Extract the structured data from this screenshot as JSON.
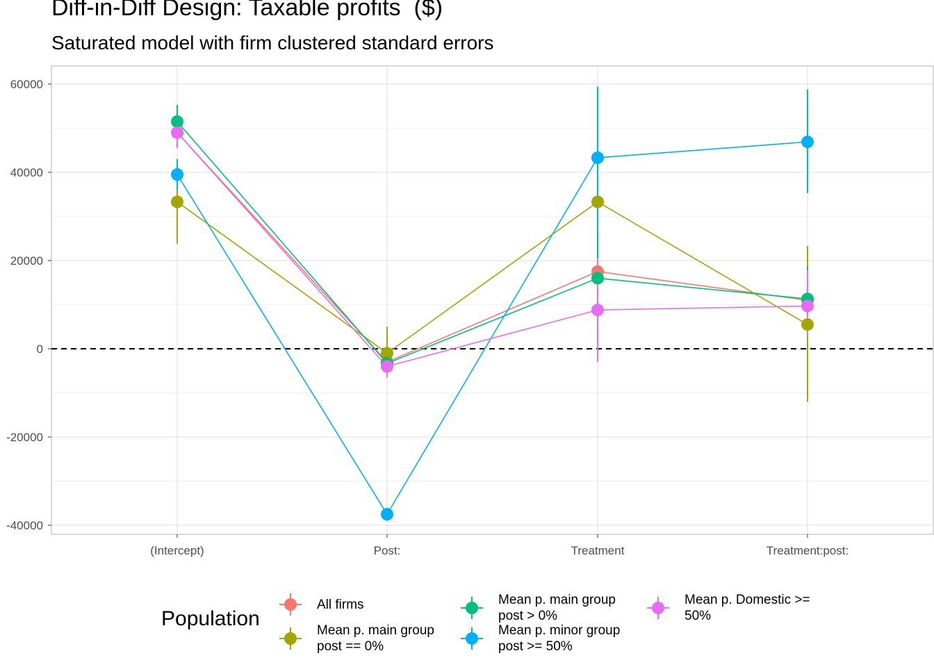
{
  "chart_data": {
    "type": "scatter",
    "title": "Diff-in-Diff Design: Taxable profits  ($)",
    "subtitle": "Saturated model with firm clustered standard errors",
    "xlabel": "",
    "ylabel": "",
    "categories": [
      "(Intercept)",
      "Post:",
      "Treatment",
      "Treatment:post:"
    ],
    "yticks": [
      -40000,
      -20000,
      0,
      20000,
      40000,
      60000
    ],
    "ylim": [
      -42000,
      64000
    ],
    "reference_line": {
      "y": 0,
      "style": "dashed"
    },
    "grid": true,
    "legend": {
      "title": "Population",
      "position": "bottom"
    },
    "series": [
      {
        "name": "All firms",
        "color": "#F8766D",
        "values": [
          49000,
          -3000,
          17500,
          11000
        ],
        "lower": [
          45500,
          -6500,
          10000,
          6000
        ],
        "upper": [
          52500,
          500,
          25000,
          16000
        ]
      },
      {
        "name": "Mean p. main group post == 0%",
        "color": "#A3A500",
        "values": [
          33300,
          -1000,
          33300,
          5500
        ],
        "lower": [
          23800,
          -6500,
          24500,
          -12000
        ],
        "upper": [
          43000,
          5000,
          42000,
          23300
        ]
      },
      {
        "name": "Mean p. main group post > 0%",
        "color": "#00BF7D",
        "values": [
          51500,
          -3300,
          16000,
          11300
        ],
        "lower": [
          47700,
          -6000,
          5000,
          4000
        ],
        "upper": [
          55300,
          -500,
          27000,
          18500
        ]
      },
      {
        "name": "Mean p. minor group post >= 50%",
        "color": "#00B0F6",
        "values": [
          39500,
          -37500,
          43300,
          46900
        ],
        "lower": [
          36000,
          -39000,
          27300,
          35300
        ],
        "upper": [
          43000,
          -36000,
          59400,
          58800
        ]
      },
      {
        "name": "Mean p. Domestic >= 50%",
        "color": "#E76BF3",
        "values": [
          49000,
          -4000,
          8800,
          9700
        ],
        "lower": [
          45500,
          -6500,
          -3000,
          3000
        ],
        "upper": [
          52500,
          -1500,
          20500,
          17800
        ]
      }
    ]
  }
}
